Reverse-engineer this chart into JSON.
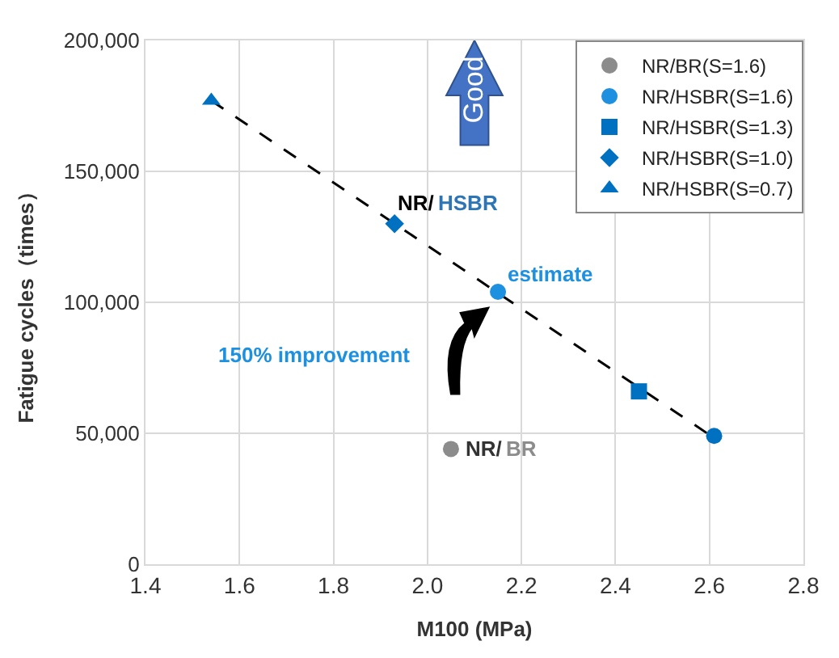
{
  "chart_data": {
    "type": "scatter",
    "xlabel": "M100 (MPa)",
    "ylabel": "Fatigue cycles（times）",
    "xlim": [
      1.4,
      2.8
    ],
    "xticks": [
      {
        "value": 1.4,
        "label": "1.4"
      },
      {
        "value": 1.6,
        "label": "1.6"
      },
      {
        "value": 1.8,
        "label": "1.8"
      },
      {
        "value": 2.0,
        "label": "2.0"
      },
      {
        "value": 2.2,
        "label": "2.2"
      },
      {
        "value": 2.4,
        "label": "2.4"
      },
      {
        "value": 2.6,
        "label": "2.6"
      },
      {
        "value": 2.8,
        "label": "2.8"
      }
    ],
    "ylim": [
      0,
      200000
    ],
    "yticks": [
      {
        "value": 0,
        "label": "0"
      },
      {
        "value": 50000,
        "label": "50,000"
      },
      {
        "value": 100000,
        "label": "100,000"
      },
      {
        "value": 150000,
        "label": "150,000"
      },
      {
        "value": 200000,
        "label": "200,000"
      }
    ],
    "grid": true,
    "legend": "top right",
    "series": [
      {
        "type": "line",
        "x": [
          1.54,
          2.62
        ],
        "values": [
          177000,
          47000
        ],
        "color": "#000000",
        "marker": "none",
        "line_style": "dashed"
      },
      {
        "name": "NR/BR(S=1.6)",
        "x": [
          2.05
        ],
        "values": [
          44000
        ],
        "color": "#8c8c8c",
        "marker": "circle"
      },
      {
        "name": "NR/HSBR(S=1.6)",
        "x": [
          2.15,
          2.61
        ],
        "values": [
          104000,
          49000
        ],
        "color": "#0070c0",
        "colors": [
          "#1e90e0",
          "#0070c0"
        ],
        "marker": "circle"
      },
      {
        "name": "NR/HSBR(S=1.3)",
        "x": [
          2.45
        ],
        "values": [
          66000
        ],
        "color": "#0070c0",
        "marker": "square"
      },
      {
        "name": "NR/HSBR(S=1.0)",
        "x": [
          1.93
        ],
        "values": [
          130000
        ],
        "color": "#0070c0",
        "marker": "diamond"
      },
      {
        "name": "NR/HSBR(S=0.7)",
        "x": [
          1.54
        ],
        "values": [
          177000
        ],
        "color": "#0070c0",
        "marker": "triangle"
      }
    ],
    "annotations": [
      "estimate",
      "150% improvement",
      "NR/",
      "HSBR",
      "NR/",
      "BR",
      "Good"
    ]
  }
}
